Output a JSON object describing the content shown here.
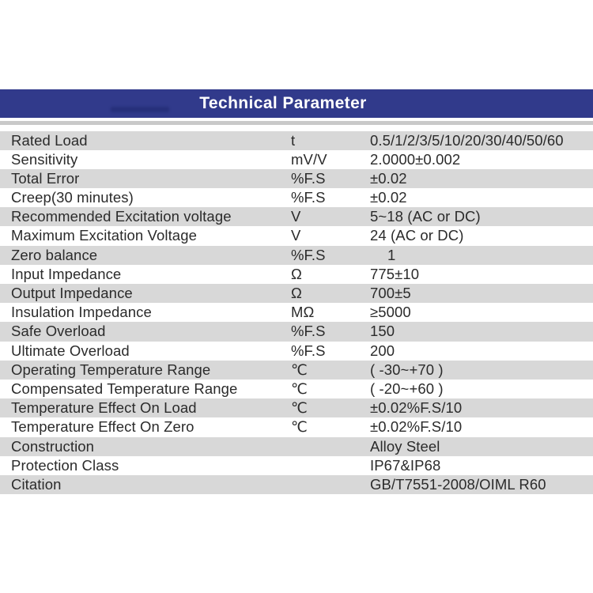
{
  "banner": {
    "title": "Technical Parameter",
    "background_color": "#313a8b",
    "text_color": "#ffffff"
  },
  "divider_color": "#c9c9c9",
  "table": {
    "stripe_color": "#d8d8d8",
    "text_color": "#2b2b2b",
    "rows": [
      {
        "parameter": "Rated Load",
        "unit": "t",
        "value": "0.5/1/2/3/5/10/20/30/40/50/60"
      },
      {
        "parameter": "Sensitivity",
        "unit": "mV/V",
        "value": "2.0000±0.002"
      },
      {
        "parameter": "Total Error",
        "unit": "%F.S",
        "value": "±0.02"
      },
      {
        "parameter": "Creep(30 minutes)",
        "unit": "%F.S",
        "value": "±0.02"
      },
      {
        "parameter": "Recommended Excitation voltage",
        "unit": "V",
        "value": "5~18 (AC or DC)"
      },
      {
        "parameter": "Maximum Excitation Voltage",
        "unit": "V",
        "value": "24 (AC or DC)"
      },
      {
        "parameter": "Zero balance",
        "unit": "%F.S",
        "value": "1"
      },
      {
        "parameter": "Input Impedance",
        "unit": "Ω",
        "value": "775±10"
      },
      {
        "parameter": "Output Impedance",
        "unit": "Ω",
        "value": "700±5"
      },
      {
        "parameter": "Insulation Impedance",
        "unit": "MΩ",
        "value": "≥5000"
      },
      {
        "parameter": "Safe Overload",
        "unit": "%F.S",
        "value": "150"
      },
      {
        "parameter": "Ultimate Overload",
        "unit": "%F.S",
        "value": "200"
      },
      {
        "parameter": "Operating Temperature Range",
        "unit": "℃",
        "value": "( -30~+70 )"
      },
      {
        "parameter": "Compensated Temperature Range",
        "unit": "℃",
        "value": "( -20~+60 )"
      },
      {
        "parameter": "Temperature Effect On Load",
        "unit": "℃",
        "value": "±0.02%F.S/10"
      },
      {
        "parameter": "Temperature Effect On Zero",
        "unit": "℃",
        "value": "±0.02%F.S/10"
      },
      {
        "parameter": "Construction",
        "unit": "",
        "value": "Alloy Steel"
      },
      {
        "parameter": "Protection Class",
        "unit": "",
        "value": "IP67&IP68"
      },
      {
        "parameter": "Citation",
        "unit": "",
        "value": "GB/T7551-2008/OIML R60"
      }
    ]
  }
}
